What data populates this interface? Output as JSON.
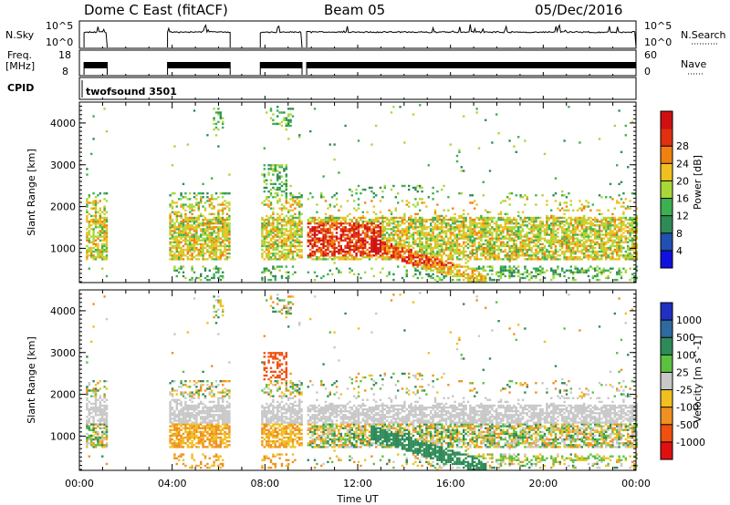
{
  "header": {
    "station": "Dome C East (fitACF)",
    "beam": "Beam 05",
    "date": "05/Dec/2016"
  },
  "top_panels": {
    "nsky_label": "N.Sky",
    "nsky_ticks": [
      "10^5",
      "10^0"
    ],
    "nsearch_label": "N.Search",
    "freq_label_1": "Freq.",
    "freq_label_2": "[MHz]",
    "freq_ticks": [
      "18",
      "8"
    ],
    "nave_ticks": [
      "60",
      "0"
    ],
    "nave_label": "Nave",
    "cpid_label": "CPID",
    "cpid_value": "twofsound 3501"
  },
  "chart_data": [
    {
      "type": "heatmap",
      "name": "power",
      "ylabel": "Slant Range [km]",
      "ylim": [
        180,
        4500
      ],
      "yticks": [
        "1000",
        "2000",
        "3000",
        "4000"
      ],
      "xlabel": "",
      "xticks": [
        "00:00",
        "04:00",
        "08:00",
        "12:00",
        "16:00",
        "20:00",
        "00:00"
      ],
      "colorbar": {
        "label": "Power [dB]",
        "ticks": [
          "4",
          "8",
          "12",
          "16",
          "20",
          "24",
          "28"
        ],
        "colors": [
          "#1010e0",
          "#2050b0",
          "#2e8b57",
          "#3cb050",
          "#a8d838",
          "#f0c020",
          "#f08010",
          "#e03010",
          "#d01010"
        ]
      }
    },
    {
      "type": "heatmap",
      "name": "velocity",
      "ylabel": "Slant Range [km]",
      "ylim": [
        180,
        4500
      ],
      "yticks": [
        "1000",
        "2000",
        "3000",
        "4000"
      ],
      "xlabel": "Time UT",
      "xticks": [
        "00:00",
        "04:00",
        "08:00",
        "12:00",
        "16:00",
        "20:00",
        "00:00"
      ],
      "colorbar": {
        "label": "Velocity [m s^-1]",
        "ticks": [
          "1000",
          "500",
          "100",
          "25",
          "-25",
          "-100",
          "-500",
          "-1000"
        ],
        "colors": [
          "#2030c0",
          "#2e6aa0",
          "#2e8b57",
          "#5cc040",
          "#c8c8c8",
          "#f0c020",
          "#f09020",
          "#f05010",
          "#e01010"
        ]
      }
    }
  ]
}
